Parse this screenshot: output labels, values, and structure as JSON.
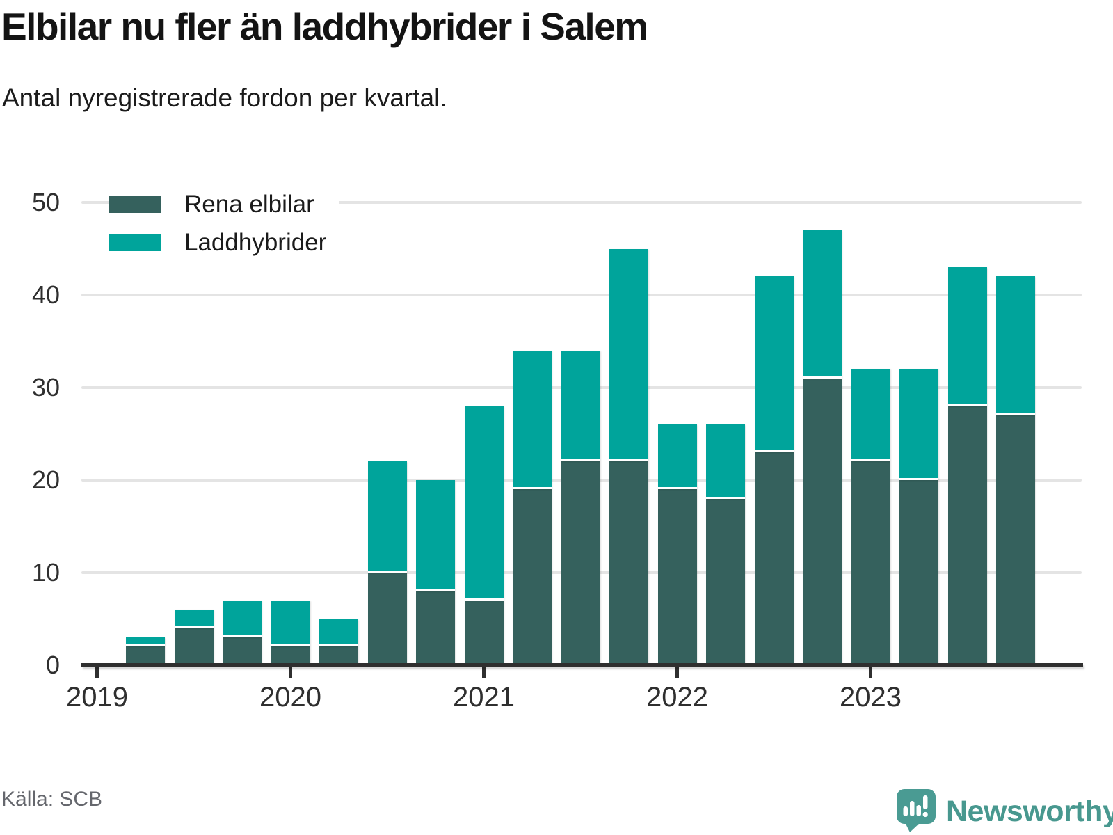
{
  "title": "Elbilar nu fler än laddhybrider i Salem",
  "subtitle": "Antal nyregistrerade fordon per kvartal.",
  "source": "Källa: SCB",
  "brand": {
    "name": "Newsworthy"
  },
  "colors": {
    "pure_ev": "#35615d",
    "plugin_hybrid": "#00a49b",
    "gridline": "#e4e4e4",
    "axis": "#2f2f2f",
    "brand_teal": "#48988f"
  },
  "legend": {
    "items": [
      {
        "label": "Rena elbilar",
        "color": "#35615d"
      },
      {
        "label": "Laddhybrider",
        "color": "#00a49b"
      }
    ]
  },
  "chart_data": {
    "type": "bar",
    "stacked": true,
    "title": "Elbilar nu fler än laddhybrider i Salem",
    "subtitle": "Antal nyregistrerade fordon per kvartal.",
    "categories": [
      "2019 Q2",
      "2019 Q3",
      "2019 Q4",
      "2020 Q1",
      "2020 Q2",
      "2020 Q3",
      "2020 Q4",
      "2021 Q1",
      "2021 Q2",
      "2021 Q3",
      "2021 Q4",
      "2022 Q1",
      "2022 Q2",
      "2022 Q3",
      "2022 Q4",
      "2023 Q1",
      "2023 Q2",
      "2023 Q3",
      "2023 Q4"
    ],
    "series": [
      {
        "name": "Rena elbilar",
        "color": "#35615d",
        "values": [
          2,
          4,
          3,
          2,
          2,
          10,
          8,
          7,
          19,
          22,
          22,
          19,
          18,
          23,
          31,
          22,
          20,
          28,
          27
        ]
      },
      {
        "name": "Laddhybrider",
        "color": "#00a49b",
        "values": [
          1,
          2,
          4,
          5,
          3,
          12,
          12,
          21,
          15,
          12,
          23,
          7,
          8,
          19,
          16,
          10,
          12,
          15,
          15
        ]
      }
    ],
    "totals": [
      3,
      6,
      7,
      7,
      5,
      22,
      20,
      28,
      34,
      34,
      45,
      26,
      26,
      42,
      47,
      32,
      32,
      43,
      42
    ],
    "x_tick_labels": [
      "2019",
      "2020",
      "2021",
      "2022",
      "2023"
    ],
    "y_ticks": [
      0,
      10,
      20,
      30,
      40,
      50
    ],
    "ylim": [
      0,
      50
    ],
    "grid": "horizontal",
    "legend_position": "top-left"
  }
}
